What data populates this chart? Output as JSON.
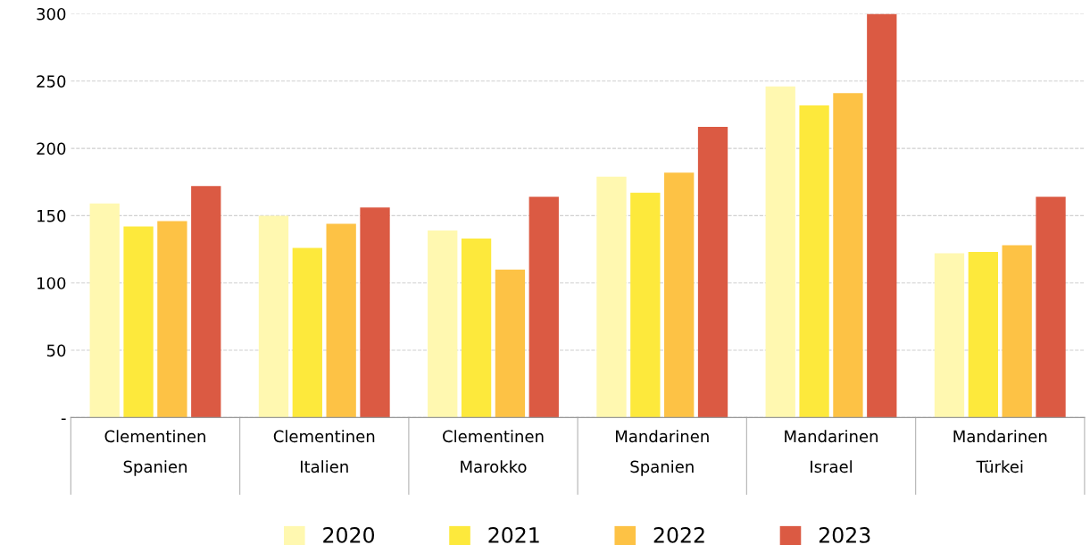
{
  "chart_data": {
    "type": "bar",
    "categories": [
      "Clementinen\nSpanien",
      "Clementinen\nItalien",
      "Clementinen\nMarokko",
      "Mandarinen\nSpanien",
      "Mandarinen\nIsrael",
      "Mandarinen\nTürkei"
    ],
    "series": [
      {
        "name": "2020",
        "color": "#fff8b0",
        "values": [
          159,
          150,
          139,
          179,
          246,
          122
        ]
      },
      {
        "name": "2021",
        "color": "#fde93c",
        "values": [
          142,
          126,
          133,
          167,
          232,
          123
        ]
      },
      {
        "name": "2022",
        "color": "#fdc245",
        "values": [
          146,
          144,
          110,
          182,
          241,
          128
        ]
      },
      {
        "name": "2023",
        "color": "#db5a43",
        "values": [
          172,
          156,
          164,
          216,
          300,
          164
        ]
      }
    ],
    "ylim": [
      0,
      300
    ],
    "yticks": [
      {
        "value": 0,
        "label": "-"
      },
      50,
      100,
      150,
      200,
      250,
      300
    ],
    "grid": "y",
    "legend": "bottom"
  }
}
